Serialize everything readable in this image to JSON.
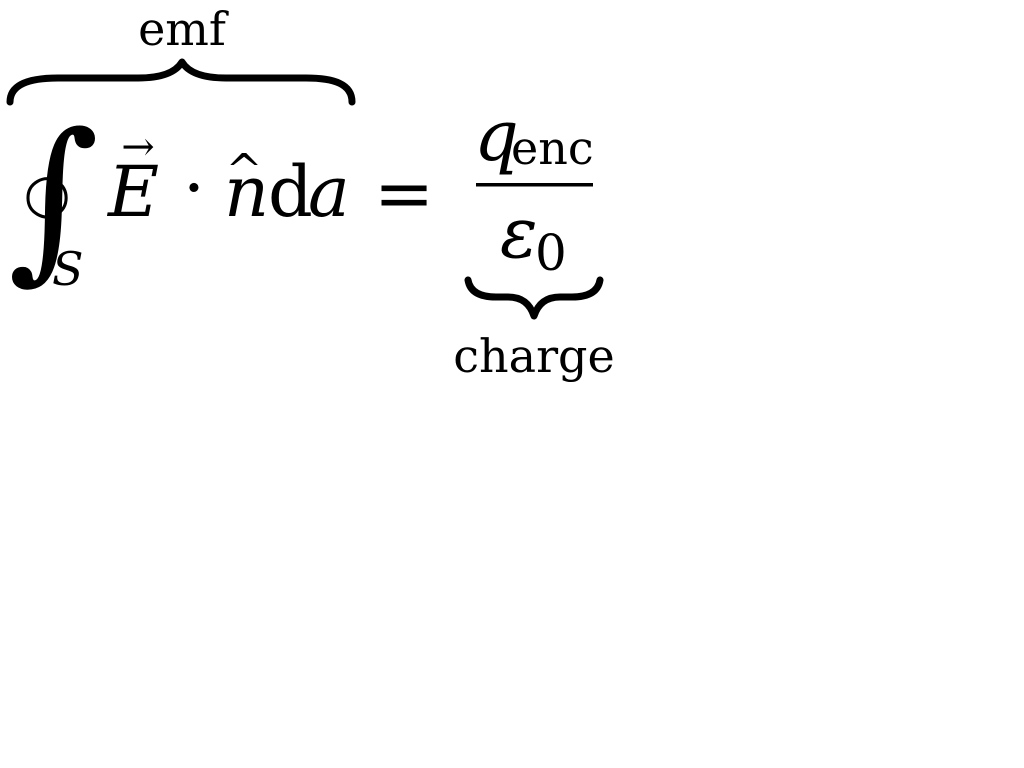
{
  "equation": {
    "overbrace_label": "emf",
    "underbrace_label": "charge",
    "integral_symbol": "∫",
    "contour_ring_symbol": "○",
    "integral_subscript": "S",
    "field_letter": "E",
    "vector_arrow": "→",
    "dot_operator": "·",
    "normal_letter": "n",
    "hat_symbol": "^",
    "differential_letter": "d",
    "area_letter": "a",
    "equals_sign": "=",
    "numerator_letter": "q",
    "numerator_subscript": "enc",
    "denominator_letter": "ε",
    "denominator_subscript": "0"
  }
}
